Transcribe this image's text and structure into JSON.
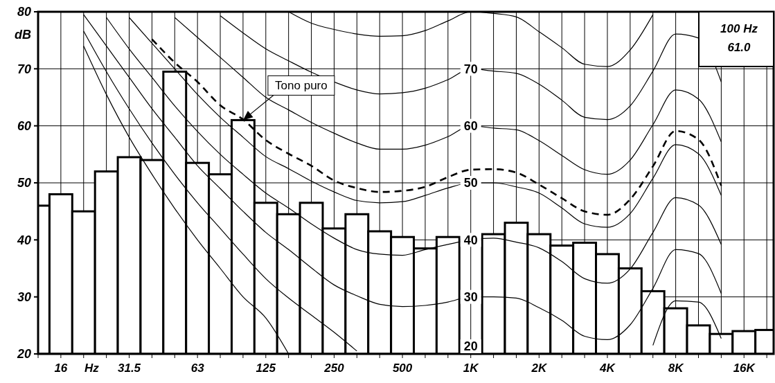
{
  "chart_data": {
    "type": "bar",
    "xlabel": "Hz",
    "ylabel": "dB",
    "categories": [
      null,
      "16",
      null,
      null,
      "31.5",
      null,
      null,
      "63",
      null,
      null,
      "125",
      null,
      null,
      "250",
      null,
      null,
      "500",
      null,
      null,
      "1K",
      null,
      null,
      "2K",
      null,
      null,
      "4K",
      null,
      null,
      "8K",
      null,
      null,
      "16K",
      null
    ],
    "ylim": [
      20,
      80
    ],
    "yticks": [
      20,
      30,
      40,
      50,
      60,
      70,
      80
    ],
    "grid": true,
    "series": [
      {
        "color": "#ffffff",
        "values": [
          46,
          48,
          45,
          52,
          54.5,
          54,
          69.5,
          53.5,
          51.5,
          61,
          46.5,
          44.5,
          46.5,
          42,
          44.5,
          41.5,
          40.5,
          38.5,
          40.5,
          null,
          41,
          43,
          41,
          39,
          39.5,
          37.5,
          35,
          31,
          28,
          25,
          23.5,
          24,
          24.2
        ]
      },
      {
        "type": "line",
        "color": "#000000",
        "line_style": "solid",
        "values": [
          null,
          null,
          74,
          65.5,
          58,
          51.5,
          45.5,
          40,
          35,
          30,
          26.3,
          20,
          null,
          null,
          null,
          null,
          null,
          null,
          null,
          null,
          null,
          null,
          null,
          null,
          null,
          null,
          null,
          null,
          null,
          null,
          null,
          null,
          null
        ]
      },
      {
        "type": "line",
        "color": "#000000",
        "line_style": "solid",
        "values": [
          null,
          null,
          76.6,
          69.5,
          63,
          57,
          51.5,
          46.5,
          42,
          37.5,
          33.2,
          29.8,
          26.8,
          23.8,
          20.5,
          null,
          null,
          null,
          null,
          null,
          null,
          null,
          null,
          null,
          null,
          null,
          null,
          21.5,
          29.3,
          29.1,
          22.7,
          null,
          null
        ]
      },
      {
        "type": "line",
        "color": "#000000",
        "line_style": "solid",
        "values": [
          null,
          null,
          79.5,
          74,
          68.5,
          63,
          58,
          53,
          49,
          45,
          41.3,
          38.3,
          35.1,
          32.1,
          30.2,
          28.7,
          28.3,
          28.5,
          29.1,
          30,
          30,
          29.8,
          28.1,
          25.9,
          23.1,
          22.5,
          25.1,
          31.5,
          38.3,
          37.6,
          30.6,
          null,
          null
        ]
      },
      {
        "type": "line",
        "color": "#000000",
        "line_style": "solid",
        "values": [
          null,
          null,
          null,
          79,
          73.5,
          68.5,
          63.5,
          59,
          55,
          51.5,
          48.2,
          45.6,
          42.8,
          40.3,
          38.3,
          37.5,
          37.3,
          38.3,
          39.2,
          40,
          40.3,
          39.6,
          38.6,
          36.2,
          33.2,
          32.4,
          34.9,
          41.3,
          47.4,
          46.1,
          39.2,
          null,
          null
        ]
      },
      {
        "type": "line",
        "color": "#000000",
        "line_style": "solid",
        "values": [
          null,
          null,
          null,
          null,
          79,
          74.5,
          70,
          65.5,
          61.5,
          58,
          54.6,
          52.5,
          50.3,
          48.4,
          46.9,
          46.5,
          46.7,
          47.8,
          49.1,
          50,
          50,
          49.3,
          48.2,
          45.6,
          42.8,
          42.2,
          44.6,
          50.8,
          56.7,
          55.1,
          47.8,
          null,
          null
        ]
      },
      {
        "type": "line",
        "color": "#000000",
        "line_style": "dashed",
        "values": [
          null,
          null,
          null,
          null,
          null,
          75.2,
          71.1,
          67.7,
          63.6,
          61.1,
          57.5,
          55.1,
          53,
          50.4,
          49.1,
          48.4,
          48.6,
          49.3,
          51,
          52.3,
          52.4,
          51.8,
          49.7,
          47.3,
          45,
          44.4,
          47.1,
          52.9,
          59.1,
          57.6,
          49.5,
          null,
          null
        ]
      },
      {
        "type": "line",
        "color": "#000000",
        "line_style": "solid",
        "values": [
          null,
          null,
          null,
          null,
          null,
          null,
          79,
          75.5,
          72,
          68.5,
          65,
          62.8,
          60.6,
          58.7,
          57,
          55.9,
          55.9,
          56.6,
          58.1,
          60,
          59.6,
          59.3,
          57.4,
          54.8,
          52.3,
          51.5,
          54,
          60.2,
          66.3,
          64.7,
          57.2,
          null,
          null
        ]
      },
      {
        "type": "line",
        "color": "#000000",
        "line_style": "solid",
        "values": [
          null,
          null,
          null,
          null,
          null,
          null,
          null,
          null,
          79.3,
          76.3,
          73.5,
          71.4,
          69.4,
          67.7,
          66.3,
          65.6,
          65.8,
          66.6,
          68.1,
          70,
          69.6,
          69.2,
          67.3,
          64.5,
          61.5,
          61.1,
          63.5,
          69.6,
          76.1,
          75.4,
          67.7,
          null,
          null
        ]
      },
      {
        "type": "line",
        "color": "#000000",
        "line_style": "solid",
        "values": [
          null,
          null,
          null,
          null,
          null,
          null,
          null,
          null,
          null,
          null,
          null,
          80,
          78,
          76.9,
          76.1,
          75.7,
          75.8,
          76.7,
          78.4,
          80,
          79.7,
          79.1,
          76.5,
          73.7,
          70.8,
          70.4,
          73.3,
          79.5,
          null,
          null,
          null,
          null,
          null
        ]
      }
    ],
    "annotations": [
      {
        "text": "Tono puro",
        "y": 61
      },
      "100 Hz",
      "61.0",
      {
        "text": "70",
        "x": "1K",
        "y": 70
      },
      {
        "text": "60",
        "x": "1K",
        "y": 60
      },
      {
        "text": "50",
        "x": "1K",
        "y": 50
      },
      {
        "text": "40",
        "x": "1K",
        "y": 40
      },
      {
        "text": "30",
        "x": "1K",
        "y": 30
      },
      "20"
    ]
  }
}
